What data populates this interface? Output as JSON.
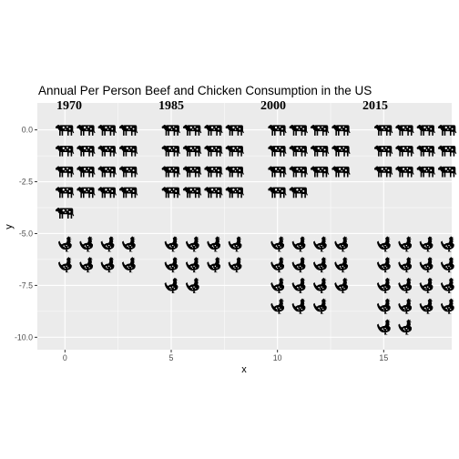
{
  "chart_data": {
    "type": "scatter",
    "title": "Annual Per Person Beef and Chicken Consumption in the US",
    "xlabel": "x",
    "ylabel": "y",
    "xlim": [
      -1.3,
      18.2
    ],
    "ylim": [
      -10.6,
      1.3
    ],
    "x_ticks": [
      0,
      5,
      10,
      15
    ],
    "y_ticks": [
      0.0,
      -2.5,
      -5.0,
      -7.5,
      -10.0
    ],
    "x_tick_labels": [
      "0",
      "5",
      "10",
      "15"
    ],
    "y_tick_labels": [
      "0.0",
      "-2.5",
      "-5.0",
      "-7.5",
      "-10.0"
    ],
    "grid": true,
    "legend": "none",
    "background_color": "#ebebeb",
    "grid_color": "#ffffff",
    "icon_color": "#000000",
    "year_labels": [
      {
        "label": "1970",
        "x": 0.2,
        "y": 1.0
      },
      {
        "label": "1985",
        "x": 5.0,
        "y": 1.0
      },
      {
        "label": "2000",
        "x": 9.8,
        "y": 1.0
      },
      {
        "label": "2015",
        "x": 14.6,
        "y": 1.0
      }
    ],
    "groups": [
      {
        "year": "1970",
        "x0": 0,
        "beef": 17,
        "chicken": 8
      },
      {
        "year": "1985",
        "x0": 5,
        "beef": 16,
        "chicken": 10
      },
      {
        "year": "2000",
        "x0": 10,
        "beef": 14,
        "chicken": 15
      },
      {
        "year": "2015",
        "x0": 15,
        "beef": 12,
        "chicken": 18
      }
    ],
    "series": [
      {
        "icon": "cow-icon",
        "points": [
          [
            0,
            0
          ],
          [
            1,
            0
          ],
          [
            2,
            0
          ],
          [
            3,
            0
          ],
          [
            0,
            -1
          ],
          [
            1,
            -1
          ],
          [
            2,
            -1
          ],
          [
            3,
            -1
          ],
          [
            0,
            -2
          ],
          [
            1,
            -2
          ],
          [
            2,
            -2
          ],
          [
            3,
            -2
          ],
          [
            0,
            -3
          ],
          [
            1,
            -3
          ],
          [
            2,
            -3
          ],
          [
            3,
            -3
          ],
          [
            0,
            -4
          ],
          [
            5,
            0
          ],
          [
            6,
            0
          ],
          [
            7,
            0
          ],
          [
            8,
            0
          ],
          [
            5,
            -1
          ],
          [
            6,
            -1
          ],
          [
            7,
            -1
          ],
          [
            8,
            -1
          ],
          [
            5,
            -2
          ],
          [
            6,
            -2
          ],
          [
            7,
            -2
          ],
          [
            8,
            -2
          ],
          [
            5,
            -3
          ],
          [
            6,
            -3
          ],
          [
            7,
            -3
          ],
          [
            8,
            -3
          ],
          [
            10,
            0
          ],
          [
            11,
            0
          ],
          [
            12,
            0
          ],
          [
            13,
            0
          ],
          [
            10,
            -1
          ],
          [
            11,
            -1
          ],
          [
            12,
            -1
          ],
          [
            13,
            -1
          ],
          [
            10,
            -2
          ],
          [
            11,
            -2
          ],
          [
            12,
            -2
          ],
          [
            13,
            -2
          ],
          [
            10,
            -3
          ],
          [
            11,
            -3
          ],
          [
            15,
            0
          ],
          [
            16,
            0
          ],
          [
            17,
            0
          ],
          [
            18,
            0
          ],
          [
            15,
            -1
          ],
          [
            16,
            -1
          ],
          [
            17,
            -1
          ],
          [
            18,
            -1
          ],
          [
            15,
            -2
          ],
          [
            16,
            -2
          ],
          [
            17,
            -2
          ],
          [
            18,
            -2
          ]
        ]
      },
      {
        "icon": "chicken-icon",
        "points": [
          [
            0,
            -5.5
          ],
          [
            1,
            -5.5
          ],
          [
            2,
            -5.5
          ],
          [
            3,
            -5.5
          ],
          [
            0,
            -6.5
          ],
          [
            1,
            -6.5
          ],
          [
            2,
            -6.5
          ],
          [
            3,
            -6.5
          ],
          [
            5,
            -5.5
          ],
          [
            6,
            -5.5
          ],
          [
            7,
            -5.5
          ],
          [
            8,
            -5.5
          ],
          [
            5,
            -6.5
          ],
          [
            6,
            -6.5
          ],
          [
            7,
            -6.5
          ],
          [
            8,
            -6.5
          ],
          [
            5,
            -7.5
          ],
          [
            6,
            -7.5
          ],
          [
            10,
            -5.5
          ],
          [
            11,
            -5.5
          ],
          [
            12,
            -5.5
          ],
          [
            13,
            -5.5
          ],
          [
            10,
            -6.5
          ],
          [
            11,
            -6.5
          ],
          [
            12,
            -6.5
          ],
          [
            13,
            -6.5
          ],
          [
            10,
            -7.5
          ],
          [
            11,
            -7.5
          ],
          [
            12,
            -7.5
          ],
          [
            13,
            -7.5
          ],
          [
            10,
            -8.5
          ],
          [
            11,
            -8.5
          ],
          [
            12,
            -8.5
          ],
          [
            15,
            -5.5
          ],
          [
            16,
            -5.5
          ],
          [
            17,
            -5.5
          ],
          [
            18,
            -5.5
          ],
          [
            15,
            -6.5
          ],
          [
            16,
            -6.5
          ],
          [
            17,
            -6.5
          ],
          [
            18,
            -6.5
          ],
          [
            15,
            -7.5
          ],
          [
            16,
            -7.5
          ],
          [
            17,
            -7.5
          ],
          [
            18,
            -7.5
          ],
          [
            15,
            -8.5
          ],
          [
            16,
            -8.5
          ],
          [
            17,
            -8.5
          ],
          [
            18,
            -8.5
          ],
          [
            15,
            -9.5
          ],
          [
            16,
            -9.5
          ]
        ]
      }
    ]
  }
}
